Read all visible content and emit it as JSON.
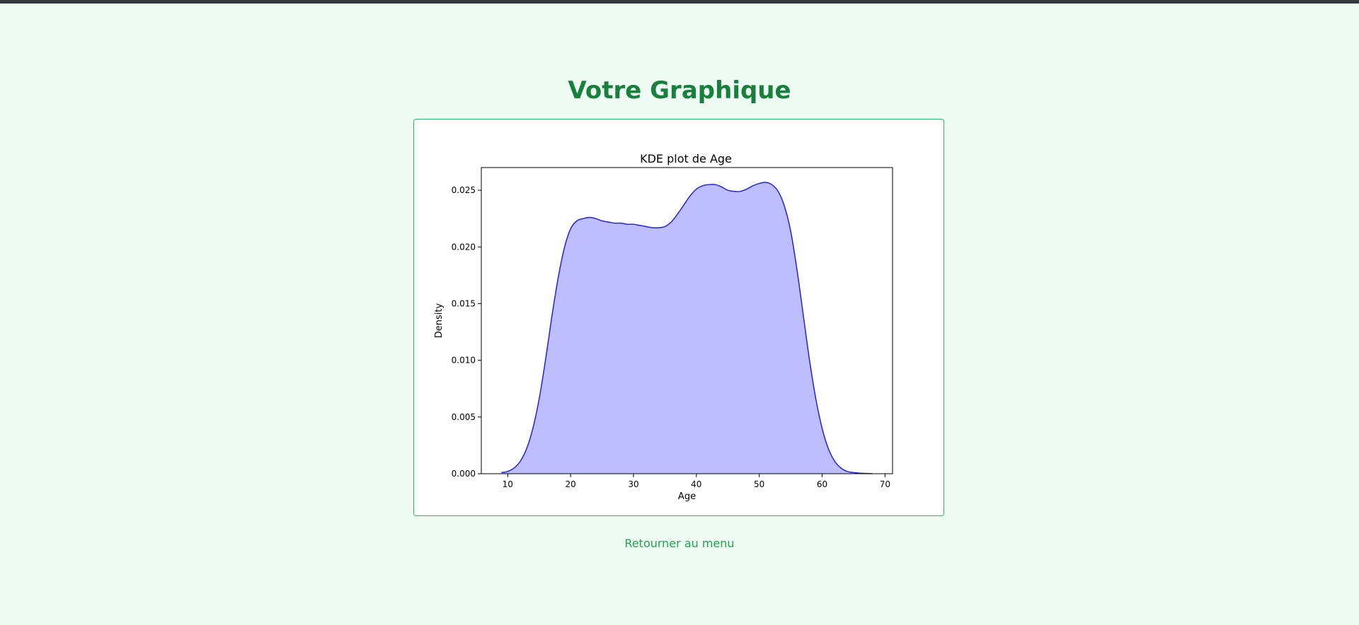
{
  "page": {
    "title": "Votre Graphique",
    "back_link": "Retourner au menu"
  },
  "colors": {
    "background": "#eefcf3",
    "title": "#18803c",
    "card_border": "#2fb568",
    "link": "#27a04f",
    "kde_line": "#2222dd",
    "kde_fill": "#bebeff"
  },
  "chart_data": {
    "type": "area",
    "title": "KDE plot de Age",
    "xlabel": "Age",
    "ylabel": "Density",
    "xlim": [
      5.8,
      71.2
    ],
    "ylim": [
      0,
      0.027
    ],
    "xticks": [
      10,
      20,
      30,
      40,
      50,
      60,
      70
    ],
    "yticks": [
      0.0,
      0.005,
      0.01,
      0.015,
      0.02,
      0.025
    ],
    "ytick_labels": [
      "0.000",
      "0.005",
      "0.010",
      "0.015",
      "0.020",
      "0.025"
    ],
    "grid": false,
    "series": [
      {
        "x": [
          9,
          10,
          11,
          12,
          13,
          14,
          15,
          16,
          17,
          18,
          19,
          20,
          21,
          22,
          23,
          24,
          25,
          26,
          27,
          28,
          29,
          30,
          31,
          32,
          33,
          34,
          35,
          36,
          37,
          38,
          39,
          40,
          41,
          42,
          43,
          44,
          45,
          46,
          47,
          48,
          49,
          50,
          51,
          52,
          53,
          54,
          55,
          56,
          57,
          58,
          59,
          60,
          61,
          62,
          63,
          64,
          65,
          66,
          67,
          68
        ],
        "y": [
          0.0001,
          0.0002,
          0.0005,
          0.0011,
          0.0022,
          0.004,
          0.0066,
          0.01,
          0.0138,
          0.0172,
          0.0199,
          0.0216,
          0.0223,
          0.0225,
          0.0226,
          0.0225,
          0.0223,
          0.0222,
          0.0221,
          0.0221,
          0.022,
          0.022,
          0.0219,
          0.0218,
          0.0217,
          0.0217,
          0.0218,
          0.0222,
          0.0229,
          0.0237,
          0.0245,
          0.0251,
          0.0254,
          0.0255,
          0.0255,
          0.0253,
          0.025,
          0.0249,
          0.0249,
          0.0251,
          0.0254,
          0.0256,
          0.0257,
          0.0255,
          0.0249,
          0.0236,
          0.0214,
          0.018,
          0.014,
          0.01,
          0.0066,
          0.004,
          0.0022,
          0.0011,
          0.0005,
          0.0002,
          0.0001,
          5e-05,
          2e-05,
          1e-05
        ]
      }
    ]
  }
}
